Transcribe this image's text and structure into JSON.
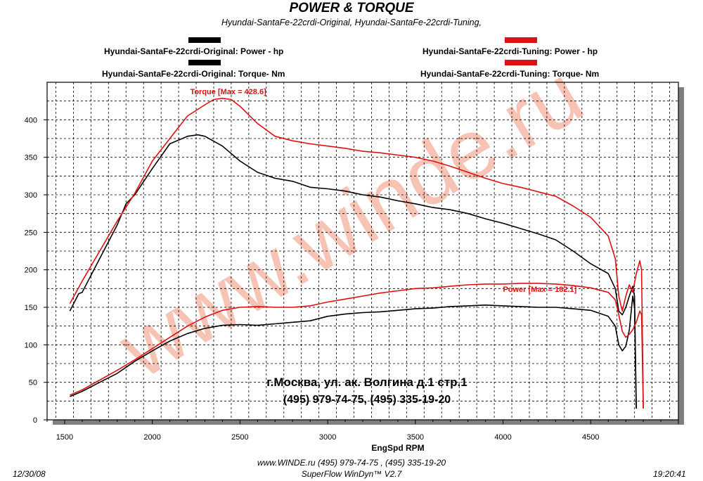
{
  "header": {
    "title": "POWER & TORQUE",
    "subtitle": "Hyundai-SantaFe-22crdi-Original, Hyundai-SantaFe-22crdi-Tuning,"
  },
  "legend": [
    {
      "label": "Hyundai-SantaFe-22crdi-Original: Power -  hp",
      "color": "#000000"
    },
    {
      "label": "Hyundai-SantaFe-22crdi-Original: Torque-  Nm",
      "color": "#000000"
    },
    {
      "label": "Hyundai-SantaFe-22crdi-Tuning: Power -  hp",
      "color": "#e01010"
    },
    {
      "label": "Hyundai-SantaFe-22crdi-Tuning: Torque-  Nm",
      "color": "#e01010"
    }
  ],
  "address": {
    "line1": "г.Москва, ул. ак. Волгина д.1 стр.1",
    "line2": "(495) 979-74-75, (495) 335-19-20"
  },
  "watermark": "www.winde.ru",
  "footer": {
    "date": "12/30/08",
    "contact": "www.WINDE.ru  (495) 979-74-75 , (495) 335-19-20",
    "software": "SuperFlow WinDyn™ V2.7",
    "time": "19:20:41"
  },
  "colors": {
    "original": "#000000",
    "tuning": "#e01010",
    "watermark": "#f4b8a8",
    "grid": "#000000"
  },
  "chart_data": {
    "type": "line",
    "title": "POWER & TORQUE",
    "xlabel": "EngSpd  RPM",
    "ylabel": "",
    "xlim": [
      1400,
      5000
    ],
    "ylim": [
      0,
      450
    ],
    "xticks": [
      1500,
      2000,
      2500,
      3000,
      3500,
      4000,
      4500
    ],
    "yticks": [
      0,
      50,
      100,
      150,
      200,
      250,
      300,
      350,
      400
    ],
    "grid": true,
    "annotations": [
      {
        "text": "Torque [Max = 428.6]",
        "x": 2400,
        "y": 428.6,
        "color": "#e01010"
      },
      {
        "text": "Power  [Max = 182.1]",
        "x": 4200,
        "y": 182.1,
        "color": "#e01010"
      }
    ],
    "series": [
      {
        "name": "Hyundai-SantaFe-22crdi-Original: Power -  hp",
        "color": "#000000",
        "x": [
          1530,
          1600,
          1700,
          1800,
          1900,
          2000,
          2100,
          2200,
          2300,
          2400,
          2500,
          2600,
          2700,
          2800,
          2900,
          3000,
          3100,
          3200,
          3300,
          3400,
          3500,
          3600,
          3700,
          3800,
          3900,
          4000,
          4100,
          4200,
          4300,
          4400,
          4500,
          4600,
          4640,
          4660,
          4680,
          4700,
          4720,
          4740,
          4750,
          4760
        ],
        "y": [
          31,
          38,
          50,
          62,
          78,
          92,
          105,
          115,
          122,
          126,
          127,
          126,
          128,
          130,
          132,
          138,
          141,
          143,
          144,
          146,
          148,
          149,
          151,
          152,
          153,
          152,
          151,
          150,
          150,
          148,
          146,
          138,
          125,
          100,
          92,
          98,
          120,
          165,
          150,
          15
        ]
      },
      {
        "name": "Hyundai-SantaFe-22crdi-Original: Torque-  Nm",
        "color": "#000000",
        "x": [
          1530,
          1580,
          1600,
          1700,
          1800,
          1850,
          1900,
          2000,
          2100,
          2200,
          2260,
          2300,
          2400,
          2500,
          2600,
          2700,
          2800,
          2900,
          3000,
          3100,
          3200,
          3300,
          3400,
          3500,
          3600,
          3700,
          3800,
          3900,
          4000,
          4100,
          4200,
          4300,
          4400,
          4500,
          4600,
          4640,
          4660,
          4680,
          4700,
          4720,
          4740,
          4750,
          4760
        ],
        "y": [
          145,
          168,
          170,
          215,
          260,
          288,
          300,
          335,
          368,
          378,
          380,
          378,
          365,
          345,
          330,
          322,
          318,
          310,
          308,
          305,
          300,
          297,
          292,
          288,
          283,
          280,
          275,
          268,
          262,
          255,
          248,
          240,
          225,
          208,
          195,
          175,
          145,
          140,
          150,
          165,
          178,
          165,
          15
        ]
      },
      {
        "name": "Hyundai-SantaFe-22crdi-Tuning: Power -  hp",
        "color": "#e01010",
        "x": [
          1530,
          1600,
          1700,
          1800,
          1900,
          2000,
          2100,
          2200,
          2300,
          2400,
          2500,
          2600,
          2700,
          2800,
          2900,
          3000,
          3100,
          3200,
          3300,
          3400,
          3500,
          3600,
          3700,
          3800,
          3900,
          4000,
          4100,
          4200,
          4300,
          4400,
          4500,
          4600,
          4640,
          4660,
          4680,
          4700,
          4720,
          4740,
          4760,
          4780,
          4790,
          4800
        ],
        "y": [
          33,
          40,
          53,
          66,
          80,
          95,
          110,
          125,
          137,
          146,
          150,
          151,
          150,
          150,
          152,
          157,
          161,
          165,
          169,
          172,
          175,
          176,
          178,
          180,
          181,
          181,
          182,
          182,
          181,
          179,
          176,
          170,
          160,
          140,
          118,
          110,
          114,
          120,
          130,
          145,
          140,
          15
        ]
      },
      {
        "name": "Hyundai-SantaFe-22crdi-Tuning: Torque-  Nm",
        "color": "#e01010",
        "x": [
          1530,
          1600,
          1700,
          1800,
          1900,
          2000,
          2100,
          2200,
          2300,
          2350,
          2400,
          2450,
          2500,
          2600,
          2700,
          2800,
          2900,
          3000,
          3100,
          3200,
          3300,
          3400,
          3500,
          3600,
          3700,
          3800,
          3900,
          4000,
          4100,
          4200,
          4300,
          4400,
          4500,
          4600,
          4640,
          4660,
          4680,
          4700,
          4720,
          4740,
          4760,
          4780,
          4790,
          4800
        ],
        "y": [
          155,
          185,
          225,
          265,
          302,
          345,
          375,
          405,
          420,
          427,
          428.6,
          427,
          418,
          395,
          378,
          372,
          368,
          365,
          362,
          358,
          356,
          353,
          350,
          345,
          338,
          330,
          322,
          315,
          310,
          304,
          298,
          285,
          270,
          245,
          215,
          165,
          145,
          165,
          180,
          170,
          195,
          212,
          200,
          15
        ]
      }
    ]
  }
}
